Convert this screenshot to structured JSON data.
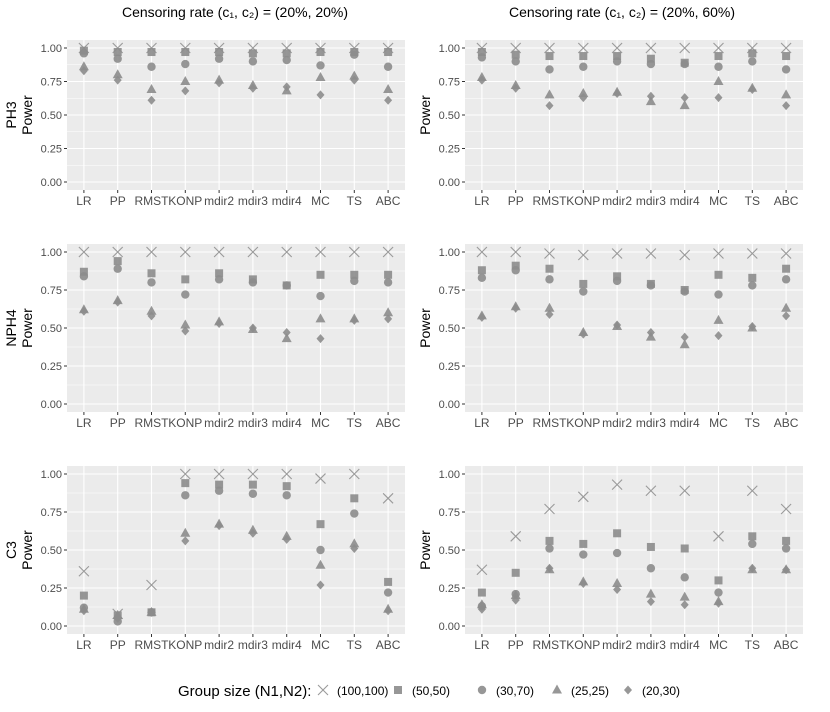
{
  "columns": [
    {
      "title": "Censoring rate (c₁, c₂) = (20%, 20%)"
    },
    {
      "title": "Censoring rate (c₁, c₂) = (20%, 60%)"
    }
  ],
  "rows": [
    {
      "label": "PH3"
    },
    {
      "label": "NPH4"
    },
    {
      "label": "C3"
    }
  ],
  "ylabel": "Power",
  "legend": {
    "title": "Group size (N1,N2):",
    "items": [
      {
        "label": "(100,100)",
        "shape": "x-icon"
      },
      {
        "label": "(50,50)",
        "shape": "square-icon"
      },
      {
        "label": "(30,70)",
        "shape": "circle-icon"
      },
      {
        "label": "(25,25)",
        "shape": "triangle-icon"
      },
      {
        "label": "(20,30)",
        "shape": "diamond-icon"
      }
    ]
  },
  "colors": {
    "panel_bg": "#ebebeb",
    "grid": "#ffffff",
    "marker": "#8c8c8c",
    "marker_x": "#9a9a9a",
    "text": "#000000",
    "tick_text": "#4d4d4d"
  },
  "chart_data": {
    "type": "scatter",
    "categories": [
      "LR",
      "PP",
      "RMST",
      "KONP",
      "mdir2",
      "mdir3",
      "mdir4",
      "MC",
      "TS",
      "ABC"
    ],
    "yticks": [
      "0.00",
      "0.25",
      "0.50",
      "0.75",
      "1.00"
    ],
    "ylim": [
      0,
      1
    ],
    "series_names": [
      "(100,100)",
      "(50,50)",
      "(30,70)",
      "(25,25)",
      "(20,30)"
    ],
    "panels": [
      {
        "row": "PH3",
        "col": 0,
        "series": [
          {
            "name": "(100,100)",
            "values": [
              1.0,
              1.0,
              1.0,
              1.0,
              1.0,
              1.0,
              1.0,
              1.0,
              1.0,
              1.0
            ]
          },
          {
            "name": "(50,50)",
            "values": [
              0.98,
              0.97,
              0.97,
              0.97,
              0.97,
              0.96,
              0.96,
              0.97,
              0.97,
              0.97
            ]
          },
          {
            "name": "(30,70)",
            "values": [
              0.96,
              0.92,
              0.86,
              0.88,
              0.92,
              0.9,
              0.91,
              0.87,
              0.95,
              0.86
            ]
          },
          {
            "name": "(25,25)",
            "values": [
              0.86,
              0.8,
              0.69,
              0.75,
              0.76,
              0.72,
              0.68,
              0.78,
              0.79,
              0.69
            ]
          },
          {
            "name": "(20,30)",
            "values": [
              0.83,
              0.76,
              0.61,
              0.68,
              0.74,
              0.7,
              0.71,
              0.65,
              0.76,
              0.61
            ]
          }
        ]
      },
      {
        "row": "PH3",
        "col": 1,
        "series": [
          {
            "name": "(100,100)",
            "values": [
              1.0,
              1.0,
              1.0,
              1.0,
              1.0,
              1.0,
              1.0,
              1.0,
              1.0,
              1.0
            ]
          },
          {
            "name": "(50,50)",
            "values": [
              0.97,
              0.95,
              0.94,
              0.94,
              0.94,
              0.92,
              0.89,
              0.94,
              0.96,
              0.94
            ]
          },
          {
            "name": "(30,70)",
            "values": [
              0.93,
              0.9,
              0.84,
              0.86,
              0.9,
              0.88,
              0.88,
              0.86,
              0.9,
              0.84
            ]
          },
          {
            "name": "(25,25)",
            "values": [
              0.78,
              0.72,
              0.65,
              0.66,
              0.67,
              0.6,
              0.57,
              0.75,
              0.7,
              0.65
            ]
          },
          {
            "name": "(20,30)",
            "values": [
              0.76,
              0.7,
              0.57,
              0.63,
              0.66,
              0.64,
              0.63,
              0.63,
              0.69,
              0.57
            ]
          }
        ]
      },
      {
        "row": "NPH4",
        "col": 0,
        "series": [
          {
            "name": "(100,100)",
            "values": [
              1.0,
              1.0,
              1.0,
              1.0,
              1.0,
              1.0,
              1.0,
              1.0,
              1.0,
              1.0
            ]
          },
          {
            "name": "(50,50)",
            "values": [
              0.87,
              0.94,
              0.86,
              0.82,
              0.86,
              0.82,
              0.78,
              0.85,
              0.85,
              0.85
            ]
          },
          {
            "name": "(30,70)",
            "values": [
              0.84,
              0.89,
              0.8,
              0.72,
              0.82,
              0.8,
              0.78,
              0.71,
              0.81,
              0.8
            ]
          },
          {
            "name": "(25,25)",
            "values": [
              0.62,
              0.68,
              0.61,
              0.52,
              0.54,
              0.49,
              0.43,
              0.56,
              0.56,
              0.6
            ]
          },
          {
            "name": "(20,30)",
            "values": [
              0.61,
              0.67,
              0.58,
              0.48,
              0.53,
              0.5,
              0.47,
              0.43,
              0.55,
              0.56
            ]
          }
        ]
      },
      {
        "row": "NPH4",
        "col": 1,
        "series": [
          {
            "name": "(100,100)",
            "values": [
              1.0,
              1.0,
              0.99,
              0.98,
              0.99,
              0.99,
              0.98,
              0.99,
              0.99,
              0.99
            ]
          },
          {
            "name": "(50,50)",
            "values": [
              0.88,
              0.91,
              0.89,
              0.79,
              0.84,
              0.79,
              0.75,
              0.85,
              0.83,
              0.89
            ]
          },
          {
            "name": "(30,70)",
            "values": [
              0.83,
              0.88,
              0.82,
              0.74,
              0.81,
              0.78,
              0.74,
              0.72,
              0.78,
              0.82
            ]
          },
          {
            "name": "(25,25)",
            "values": [
              0.58,
              0.64,
              0.63,
              0.47,
              0.51,
              0.44,
              0.39,
              0.55,
              0.5,
              0.63
            ]
          },
          {
            "name": "(20,30)",
            "values": [
              0.57,
              0.63,
              0.59,
              0.46,
              0.52,
              0.47,
              0.44,
              0.45,
              0.51,
              0.58
            ]
          }
        ]
      },
      {
        "row": "C3",
        "col": 0,
        "series": [
          {
            "name": "(100,100)",
            "values": [
              0.36,
              0.08,
              0.27,
              1.0,
              1.0,
              1.0,
              1.0,
              0.97,
              1.0,
              0.84
            ]
          },
          {
            "name": "(50,50)",
            "values": [
              0.2,
              0.07,
              0.09,
              0.94,
              0.93,
              0.93,
              0.92,
              0.67,
              0.84,
              0.29
            ]
          },
          {
            "name": "(30,70)",
            "values": [
              0.12,
              0.03,
              0.09,
              0.86,
              0.89,
              0.87,
              0.86,
              0.5,
              0.74,
              0.22
            ]
          },
          {
            "name": "(25,25)",
            "values": [
              0.11,
              0.07,
              0.09,
              0.61,
              0.67,
              0.63,
              0.59,
              0.4,
              0.54,
              0.11
            ]
          },
          {
            "name": "(20,30)",
            "values": [
              0.1,
              0.05,
              0.09,
              0.56,
              0.66,
              0.61,
              0.57,
              0.27,
              0.51,
              0.1
            ]
          }
        ]
      },
      {
        "row": "C3",
        "col": 1,
        "series": [
          {
            "name": "(100,100)",
            "values": [
              0.37,
              0.59,
              0.77,
              0.85,
              0.93,
              0.89,
              0.89,
              0.59,
              0.89,
              0.77
            ]
          },
          {
            "name": "(50,50)",
            "values": [
              0.22,
              0.35,
              0.56,
              0.54,
              0.61,
              0.52,
              0.51,
              0.3,
              0.59,
              0.56
            ]
          },
          {
            "name": "(30,70)",
            "values": [
              0.13,
              0.21,
              0.51,
              0.47,
              0.48,
              0.38,
              0.32,
              0.22,
              0.54,
              0.51
            ]
          },
          {
            "name": "(25,25)",
            "values": [
              0.14,
              0.2,
              0.37,
              0.29,
              0.28,
              0.21,
              0.19,
              0.16,
              0.37,
              0.37
            ]
          },
          {
            "name": "(20,30)",
            "values": [
              0.11,
              0.17,
              0.38,
              0.28,
              0.24,
              0.16,
              0.14,
              0.15,
              0.38,
              0.37
            ]
          }
        ]
      }
    ]
  }
}
